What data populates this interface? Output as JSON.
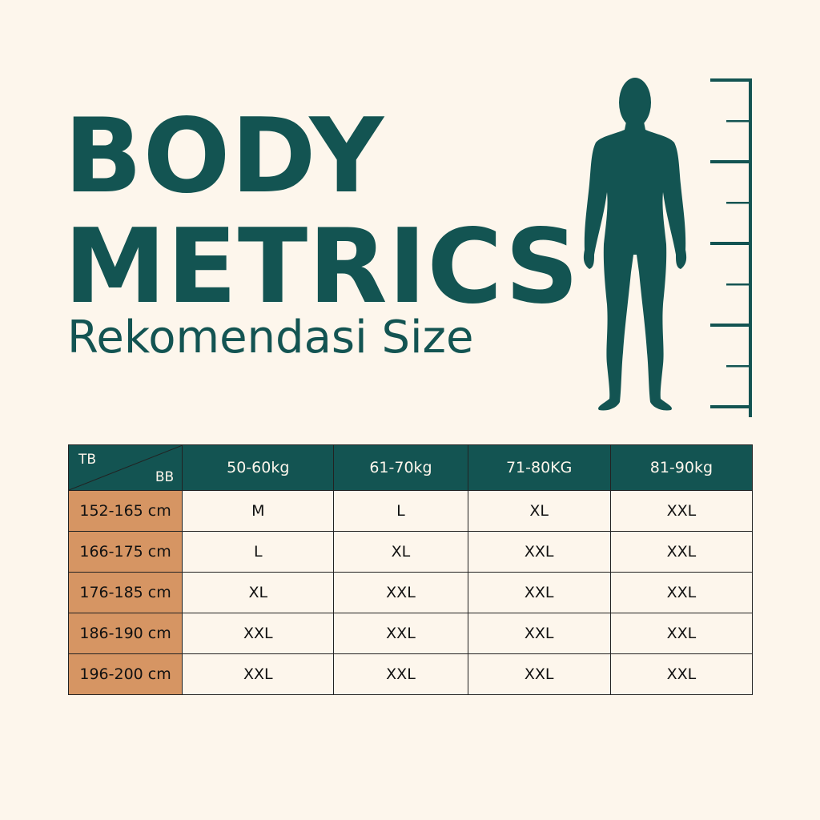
{
  "title_line1": "BODY",
  "title_line2": "METRICS",
  "subtitle": "Rekomendasi Size",
  "colors": {
    "background": "#fdf6ec",
    "teal": "#135452",
    "row_header": "#d69563"
  },
  "figure_icon": "human-silhouette-with-height-ruler",
  "table": {
    "corner_top": "TB",
    "corner_bottom": "BB",
    "columns": [
      "50-60kg",
      "61-70kg",
      "71-80KG",
      "81-90kg"
    ],
    "rows": [
      {
        "height": "152-165 cm",
        "sizes": [
          "M",
          "L",
          "XL",
          "XXL"
        ]
      },
      {
        "height": "166-175 cm",
        "sizes": [
          "L",
          "XL",
          "XXL",
          "XXL"
        ]
      },
      {
        "height": "176-185 cm",
        "sizes": [
          "XL",
          "XXL",
          "XXL",
          "XXL"
        ]
      },
      {
        "height": "186-190 cm",
        "sizes": [
          "XXL",
          "XXL",
          "XXL",
          "XXL"
        ]
      },
      {
        "height": "196-200 cm",
        "sizes": [
          "XXL",
          "XXL",
          "XXL",
          "XXL"
        ]
      }
    ]
  }
}
